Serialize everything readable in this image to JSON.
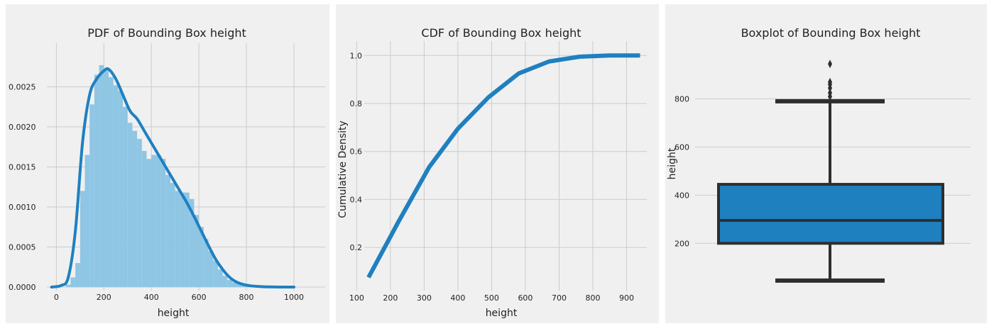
{
  "chart_data": [
    {
      "type": "histogram",
      "title": "PDF of Bounding Box height",
      "xlabel": "height",
      "ylabel": "",
      "xlim": [
        -40,
        1030
      ],
      "ylim": [
        0,
        0.003
      ],
      "xticks": [
        "0",
        "200",
        "400",
        "600",
        "800",
        "1000"
      ],
      "yticks": [
        "0.0000",
        "0.0005",
        "0.0010",
        "0.0015",
        "0.0020",
        "0.0025"
      ],
      "grid": true,
      "bins": {
        "edges": [
          40,
          60,
          80,
          100,
          120,
          140,
          160,
          180,
          200,
          220,
          240,
          260,
          280,
          300,
          320,
          340,
          360,
          380,
          400,
          420,
          440,
          460,
          480,
          500,
          520,
          540,
          560,
          580,
          600,
          620,
          640,
          660,
          680,
          700,
          720,
          740,
          760,
          780,
          800,
          820
        ],
        "density": [
          3e-05,
          0.00012,
          0.0003,
          0.0012,
          0.00165,
          0.00228,
          0.00265,
          0.00277,
          0.00272,
          0.00262,
          0.00252,
          0.00245,
          0.00225,
          0.00205,
          0.00195,
          0.00185,
          0.0017,
          0.0016,
          0.00165,
          0.00165,
          0.0016,
          0.0014,
          0.0013,
          0.0012,
          0.00118,
          0.00118,
          0.0011,
          0.0009,
          0.00075,
          0.0006,
          0.00045,
          0.00033,
          0.00022,
          0.00014,
          9e-05,
          6e-05,
          4e-05,
          2e-05,
          1e-05
        ]
      },
      "kde": {
        "x": [
          -20,
          20,
          50,
          80,
          110,
          140,
          170,
          200,
          220,
          250,
          280,
          310,
          340,
          370,
          400,
          430,
          460,
          490,
          520,
          550,
          580,
          610,
          640,
          670,
          700,
          730,
          760,
          790,
          820,
          860,
          900,
          950,
          1000
        ],
        "y": [
          0.0,
          2e-05,
          0.00012,
          0.0007,
          0.0018,
          0.0024,
          0.0026,
          0.0027,
          0.00272,
          0.0026,
          0.0024,
          0.0022,
          0.0021,
          0.00195,
          0.0018,
          0.00165,
          0.0015,
          0.00135,
          0.0012,
          0.00105,
          0.00088,
          0.0007,
          0.00052,
          0.00035,
          0.00022,
          0.00012,
          6e-05,
          3e-05,
          1.5e-05,
          6e-06,
          2e-06,
          0.0,
          0.0
        ]
      },
      "colors": {
        "hist": "#8ec6e4",
        "kde": "#1f80c0"
      }
    },
    {
      "type": "line",
      "title": "CDF of Bounding Box height",
      "xlabel": "height",
      "ylabel": "Cumulative Density",
      "xlim": [
        95,
        960
      ],
      "ylim": [
        0.02,
        1.06
      ],
      "xticks": [
        "100",
        "200",
        "300",
        "400",
        "500",
        "600",
        "700",
        "800",
        "900"
      ],
      "yticks": [
        "0.2",
        "0.4",
        "0.6",
        "0.8",
        "1.0"
      ],
      "grid": true,
      "series": [
        {
          "x": [
            135,
            225,
            315,
            400,
            490,
            580,
            670,
            760,
            850,
            940
          ],
          "y": [
            0.075,
            0.31,
            0.535,
            0.695,
            0.825,
            0.925,
            0.975,
            0.995,
            1.0,
            1.0
          ]
        }
      ],
      "color": "#1f80c0"
    },
    {
      "type": "box",
      "title": "Boxplot of Bounding Box height",
      "xlabel": "",
      "ylabel": "height",
      "ylim": [
        -20,
        1040
      ],
      "yticks": [
        "200",
        "400",
        "600",
        "800"
      ],
      "grid": true,
      "box": {
        "whisker_low": 45,
        "q1": 200,
        "median": 295,
        "q3": 445,
        "whisker_high": 790,
        "outliers": [
          810,
          825,
          845,
          860,
          870,
          945
        ]
      },
      "colors": {
        "box": "#1f80c0",
        "line": "#2e2e2e"
      }
    }
  ]
}
